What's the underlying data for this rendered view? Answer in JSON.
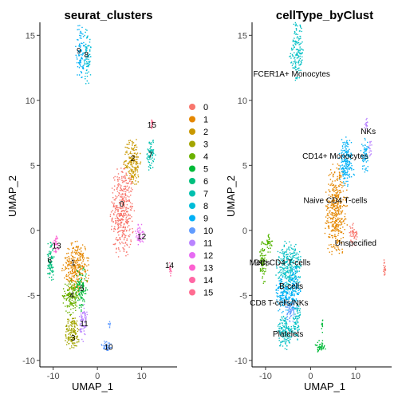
{
  "chart_data": [
    {
      "type": "scatter",
      "title": "seurat_clusters",
      "xlabel": "UMAP_1",
      "ylabel": "UMAP_2",
      "xlim": [
        -13,
        18
      ],
      "ylim": [
        -10.5,
        16
      ],
      "xticks": [
        -10,
        0,
        10
      ],
      "yticks": [
        -10,
        -5,
        0,
        5,
        10,
        15
      ],
      "grid": false,
      "legend_position": "right",
      "legend": [
        "0",
        "1",
        "2",
        "3",
        "4",
        "5",
        "6",
        "7",
        "8",
        "9",
        "10",
        "11",
        "12",
        "13",
        "14",
        "15"
      ],
      "colors": [
        "#F8766D",
        "#E58700",
        "#C99800",
        "#A3A500",
        "#6BB100",
        "#00BA38",
        "#00BF7D",
        "#00C0AF",
        "#00BCD8",
        "#00B0F6",
        "#619CFF",
        "#B983FF",
        "#E76BF3",
        "#FD61D1",
        "#FF67A4",
        "#FF6C91"
      ],
      "clusters": [
        {
          "id": "0",
          "label": "0",
          "label_xy": [
            5.5,
            2.0
          ],
          "blobs": [
            {
              "cx": 5.5,
              "cy": 1.5,
              "rx": 2.6,
              "ry": 3.6,
              "n": 420
            }
          ]
        },
        {
          "id": "1",
          "label": "1",
          "label_xy": [
            -5.5,
            -2.5
          ],
          "blobs": [
            {
              "cx": -5,
              "cy": -2.8,
              "rx": 3.0,
              "ry": 2.0,
              "n": 300
            }
          ]
        },
        {
          "id": "2",
          "label": "2",
          "label_xy": [
            8.0,
            5.5
          ],
          "blobs": [
            {
              "cx": 7.8,
              "cy": 5.3,
              "rx": 2.0,
              "ry": 1.9,
              "n": 180
            }
          ]
        },
        {
          "id": "3",
          "label": "3",
          "label_xy": [
            -5.5,
            -8.3
          ],
          "blobs": [
            {
              "cx": -5.8,
              "cy": -7.8,
              "rx": 1.8,
              "ry": 1.3,
              "n": 150
            }
          ]
        },
        {
          "id": "4",
          "label": "4",
          "label_xy": [
            -5.8,
            -5.0
          ],
          "blobs": [
            {
              "cx": -6,
              "cy": -5,
              "rx": 2.0,
              "ry": 1.4,
              "n": 150
            }
          ]
        },
        {
          "id": "5",
          "label": "5",
          "label_xy": [
            -3.5,
            -4.5
          ],
          "blobs": [
            {
              "cx": -3.8,
              "cy": -4.4,
              "rx": 1.4,
              "ry": 1.7,
              "n": 110
            }
          ]
        },
        {
          "id": "6",
          "label": "6",
          "label_xy": [
            -10.8,
            -2.3
          ],
          "blobs": [
            {
              "cx": -10.7,
              "cy": -2.3,
              "rx": 0.8,
              "ry": 1.9,
              "n": 80
            }
          ]
        },
        {
          "id": "7",
          "label": "7",
          "label_xy": [
            12.0,
            5.8
          ],
          "blobs": [
            {
              "cx": 12.0,
              "cy": 5.8,
              "rx": 1.0,
              "ry": 1.3,
              "n": 70
            }
          ]
        },
        {
          "id": "8",
          "label": "8",
          "label_xy": [
            -2.5,
            13.5
          ],
          "blobs": [
            {
              "cx": -2.4,
              "cy": 13.5,
              "rx": 0.9,
              "ry": 2.2,
              "n": 75
            }
          ]
        },
        {
          "id": "9",
          "label": "9",
          "label_xy": [
            -4.2,
            13.8
          ],
          "blobs": [
            {
              "cx": -4.0,
              "cy": 13.8,
              "rx": 1.0,
              "ry": 2.3,
              "n": 85
            }
          ]
        },
        {
          "id": "10",
          "label": "10",
          "label_xy": [
            2.5,
            -9.0
          ],
          "blobs": [
            {
              "cx": 2.0,
              "cy": -8.9,
              "rx": 1.2,
              "ry": 0.5,
              "n": 45
            },
            {
              "cx": 2.5,
              "cy": -7.3,
              "rx": 0.3,
              "ry": 0.5,
              "n": 10
            }
          ]
        },
        {
          "id": "11",
          "label": "11",
          "label_xy": [
            -3.0,
            -7.2
          ],
          "blobs": [
            {
              "cx": -3.2,
              "cy": -7.0,
              "rx": 1.0,
              "ry": 1.5,
              "n": 70
            }
          ]
        },
        {
          "id": "12",
          "label": "12",
          "label_xy": [
            10.0,
            -0.5
          ],
          "blobs": [
            {
              "cx": 9.4,
              "cy": -0.3,
              "rx": 1.0,
              "ry": 0.9,
              "n": 45
            }
          ]
        },
        {
          "id": "13",
          "label": "13",
          "label_xy": [
            -9.2,
            -1.2
          ],
          "blobs": [
            {
              "cx": -9.4,
              "cy": -1.0,
              "rx": 0.8,
              "ry": 0.7,
              "n": 35
            }
          ]
        },
        {
          "id": "14",
          "label": "14",
          "label_xy": [
            16.3,
            -2.7
          ],
          "blobs": [
            {
              "cx": 16.3,
              "cy": -2.9,
              "rx": 0.3,
              "ry": 0.7,
              "n": 20
            }
          ]
        },
        {
          "id": "15",
          "label": "15",
          "label_xy": [
            12.3,
            8.1
          ],
          "blobs": [
            {
              "cx": 12.2,
              "cy": 8.1,
              "rx": 0.5,
              "ry": 0.5,
              "n": 15
            }
          ]
        }
      ]
    },
    {
      "type": "scatter",
      "title": "cellType_byClust",
      "xlabel": "UMAP_1",
      "ylabel": "UMAP_2",
      "xlim": [
        -13,
        18
      ],
      "ylim": [
        -10.5,
        16
      ],
      "xticks": [
        -10,
        0,
        10
      ],
      "yticks": [
        -10,
        -5,
        0,
        5,
        10,
        15
      ],
      "grid": false,
      "groups": [
        {
          "label": "Naive CD4 T-cells",
          "color": "#E58700",
          "label_xy": [
            5.5,
            2.3
          ],
          "blobs": [
            {
              "cx": 5.5,
              "cy": 1.5,
              "rx": 2.6,
              "ry": 3.6,
              "n": 420
            }
          ]
        },
        {
          "label": "CD14+ Monocytes",
          "color": "#00B0F6",
          "label_xy": [
            5.5,
            5.7
          ],
          "blobs": [
            {
              "cx": 7.8,
              "cy": 5.3,
              "rx": 2.0,
              "ry": 1.9,
              "n": 180
            },
            {
              "cx": 12.0,
              "cy": 5.8,
              "rx": 1.0,
              "ry": 1.3,
              "n": 60
            }
          ]
        },
        {
          "label": "NKs",
          "color": "#B983FF",
          "label_xy": [
            12.8,
            7.6
          ],
          "blobs": [
            {
              "cx": 12.2,
              "cy": 8.1,
              "rx": 0.5,
              "ry": 0.6,
              "n": 15
            },
            {
              "cx": 13.1,
              "cy": 6.3,
              "rx": 0.5,
              "ry": 0.6,
              "n": 15
            }
          ]
        },
        {
          "label": "Unspecified",
          "color": "#F8766D",
          "label_xy": [
            10.0,
            -1.0
          ],
          "blobs": [
            {
              "cx": 9.4,
              "cy": -0.3,
              "rx": 1.0,
              "ry": 0.9,
              "n": 45
            },
            {
              "cx": 16.3,
              "cy": -2.9,
              "rx": 0.3,
              "ry": 0.7,
              "n": 20
            }
          ]
        },
        {
          "label": "FCER1A+ Monocytes",
          "color": "#00BFC4",
          "label_xy": [
            -4.2,
            12.0
          ],
          "blobs": [
            {
              "cx": -3.2,
              "cy": 13.7,
              "rx": 1.6,
              "ry": 2.3,
              "n": 150
            }
          ]
        },
        {
          "label": "Mem CD4 T-cells",
          "color": "#00BFC4",
          "label_xy": [
            -6.8,
            -2.5
          ],
          "blobs": [
            {
              "cx": -5,
              "cy": -2.8,
              "rx": 3.0,
              "ry": 2.0,
              "n": 300
            }
          ]
        },
        {
          "label": "DCs",
          "color": "#53B400",
          "label_xy": [
            -10.8,
            -2.5
          ],
          "blobs": [
            {
              "cx": -10.7,
              "cy": -2.3,
              "rx": 0.8,
              "ry": 1.9,
              "n": 80
            },
            {
              "cx": -9.4,
              "cy": -1.0,
              "rx": 0.8,
              "ry": 0.7,
              "n": 35
            }
          ]
        },
        {
          "label": "B-cells",
          "color": "#00B0F6",
          "label_xy": [
            -4.3,
            -4.3
          ],
          "blobs": [
            {
              "cx": -6,
              "cy": -5,
              "rx": 2.0,
              "ry": 1.4,
              "n": 150
            },
            {
              "cx": -3.8,
              "cy": -4.4,
              "rx": 1.4,
              "ry": 1.7,
              "n": 110
            }
          ]
        },
        {
          "label": "CD8 T-cells/NKs",
          "color": "#619CFF",
          "label_xy": [
            -7.0,
            -5.6
          ],
          "blobs": [
            {
              "cx": -4.5,
              "cy": -6.2,
              "rx": 1.4,
              "ry": 0.9,
              "n": 60
            }
          ]
        },
        {
          "label": "Platelets",
          "color": "#00BFC4",
          "label_xy": [
            -5.0,
            -8.0
          ],
          "blobs": [
            {
              "cx": -5.8,
              "cy": -7.8,
              "rx": 1.8,
              "ry": 1.3,
              "n": 150
            },
            {
              "cx": -3.2,
              "cy": -7.0,
              "rx": 1.0,
              "ry": 1.5,
              "n": 70
            }
          ]
        },
        {
          "label": "",
          "color": "#00BA38",
          "label_xy": null,
          "blobs": [
            {
              "cx": 2.0,
              "cy": -8.9,
              "rx": 1.2,
              "ry": 0.5,
              "n": 45
            },
            {
              "cx": 2.5,
              "cy": -7.3,
              "rx": 0.3,
              "ry": 0.5,
              "n": 10
            }
          ]
        }
      ]
    }
  ]
}
